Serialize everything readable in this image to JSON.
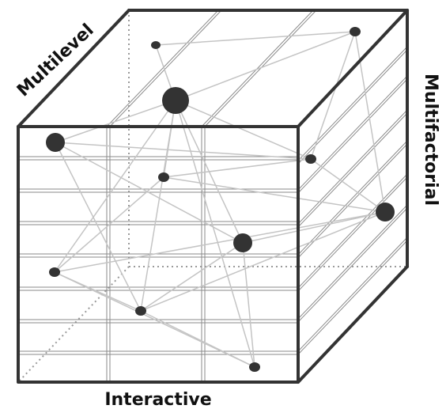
{
  "labels": {
    "top_left": "Multilevel",
    "right": "Multifactorial",
    "bottom": "Interactive"
  },
  "colors": {
    "edge": "#333333",
    "grid": "#8a8a8a",
    "network_line": "#c4c4c4",
    "node": "#333333",
    "hidden_edge": "#9a9a9a",
    "background": "#ffffff"
  },
  "icons": [
    "cube-wireframe",
    "network-graph"
  ]
}
